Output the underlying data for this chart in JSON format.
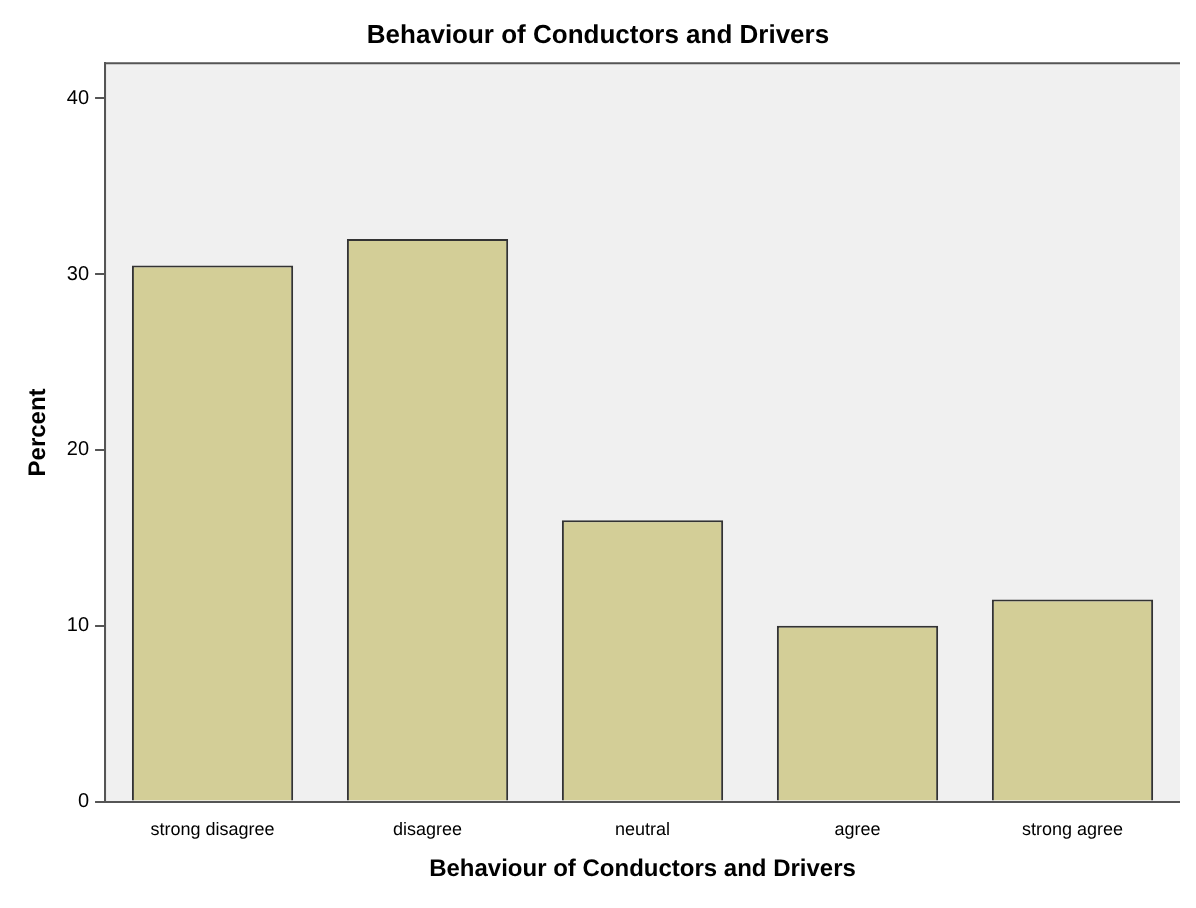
{
  "chart_data": {
    "type": "bar",
    "title": "Behaviour of Conductors and Drivers",
    "xlabel": "Behaviour of Conductors and Drivers",
    "ylabel": "Percent",
    "categories": [
      "strong disagree",
      "disagree",
      "neutral",
      "agree",
      "strong agree"
    ],
    "values": [
      30.5,
      32.0,
      16.0,
      10.0,
      11.5
    ],
    "color": "#d3ce97",
    "ylim": [
      0,
      42
    ],
    "yticks": [
      0,
      10,
      20,
      30,
      40
    ],
    "grid": false,
    "legend": false
  }
}
